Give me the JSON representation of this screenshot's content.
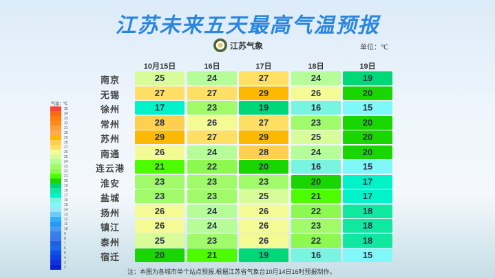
{
  "title": "江苏未来五天最高气温预报",
  "logo_text": "江苏气象",
  "unit": "单位：℃",
  "legend": {
    "title": "气温：℃",
    "labels": [
      "35",
      "34",
      "33",
      "32",
      "31",
      "30",
      "29",
      "28",
      "27",
      "26",
      "25",
      "24",
      "23",
      "22",
      "21",
      "20",
      "19",
      "18",
      "17",
      "16",
      "15",
      "14",
      "13",
      "12",
      "11",
      "10",
      "9",
      "8",
      "7",
      "6",
      "5",
      "4",
      "3",
      "2"
    ],
    "colors": [
      "#f5463a",
      "#fb6a10",
      "#fd7e10",
      "#fd8c1a",
      "#fd9e3a",
      "#fdab50",
      "#fdb900",
      "#ffcf50",
      "#ffe064",
      "#f5fb94",
      "#d9fc9a",
      "#b6fc98",
      "#a0fa6a",
      "#8cf850",
      "#4efc00",
      "#1ad600",
      "#00d878",
      "#10e8a0",
      "#00f2c8",
      "#78f4e0",
      "#80f8fa",
      "#9ee4fa",
      "#6ccaf8",
      "#30b0f8",
      "#2898f0",
      "#4a9cf0",
      "#3a80ea",
      "#3a78f0",
      "#2060e0",
      "#1868f0",
      "#1050e0",
      "#0a40e8",
      "#1030e0",
      "#0a20d0"
    ]
  },
  "columns": [
    "10月15日",
    "16日",
    "17日",
    "18日",
    "19日"
  ],
  "rows": [
    {
      "city": "南京",
      "temps": [
        25,
        24,
        27,
        24,
        19
      ]
    },
    {
      "city": "无锡",
      "temps": [
        27,
        27,
        29,
        26,
        20
      ]
    },
    {
      "city": "徐州",
      "temps": [
        17,
        23,
        19,
        16,
        15
      ]
    },
    {
      "city": "常州",
      "temps": [
        28,
        26,
        27,
        23,
        20
      ]
    },
    {
      "city": "苏州",
      "temps": [
        29,
        27,
        29,
        25,
        20
      ]
    },
    {
      "city": "南通",
      "temps": [
        26,
        24,
        28,
        24,
        20
      ]
    },
    {
      "city": "连云港",
      "temps": [
        21,
        22,
        20,
        16,
        15
      ]
    },
    {
      "city": "淮安",
      "temps": [
        23,
        23,
        23,
        20,
        17
      ]
    },
    {
      "city": "盐城",
      "temps": [
        23,
        23,
        25,
        21,
        17
      ]
    },
    {
      "city": "扬州",
      "temps": [
        26,
        24,
        26,
        22,
        18
      ]
    },
    {
      "city": "镇江",
      "temps": [
        26,
        24,
        26,
        23,
        18
      ]
    },
    {
      "city": "泰州",
      "temps": [
        25,
        23,
        26,
        22,
        18
      ]
    },
    {
      "city": "宿迁",
      "temps": [
        20,
        21,
        19,
        16,
        15
      ]
    }
  ],
  "note": "注：本图为各城市单个站点预报,根据江苏省气象台10月14日16时预报制作。"
}
